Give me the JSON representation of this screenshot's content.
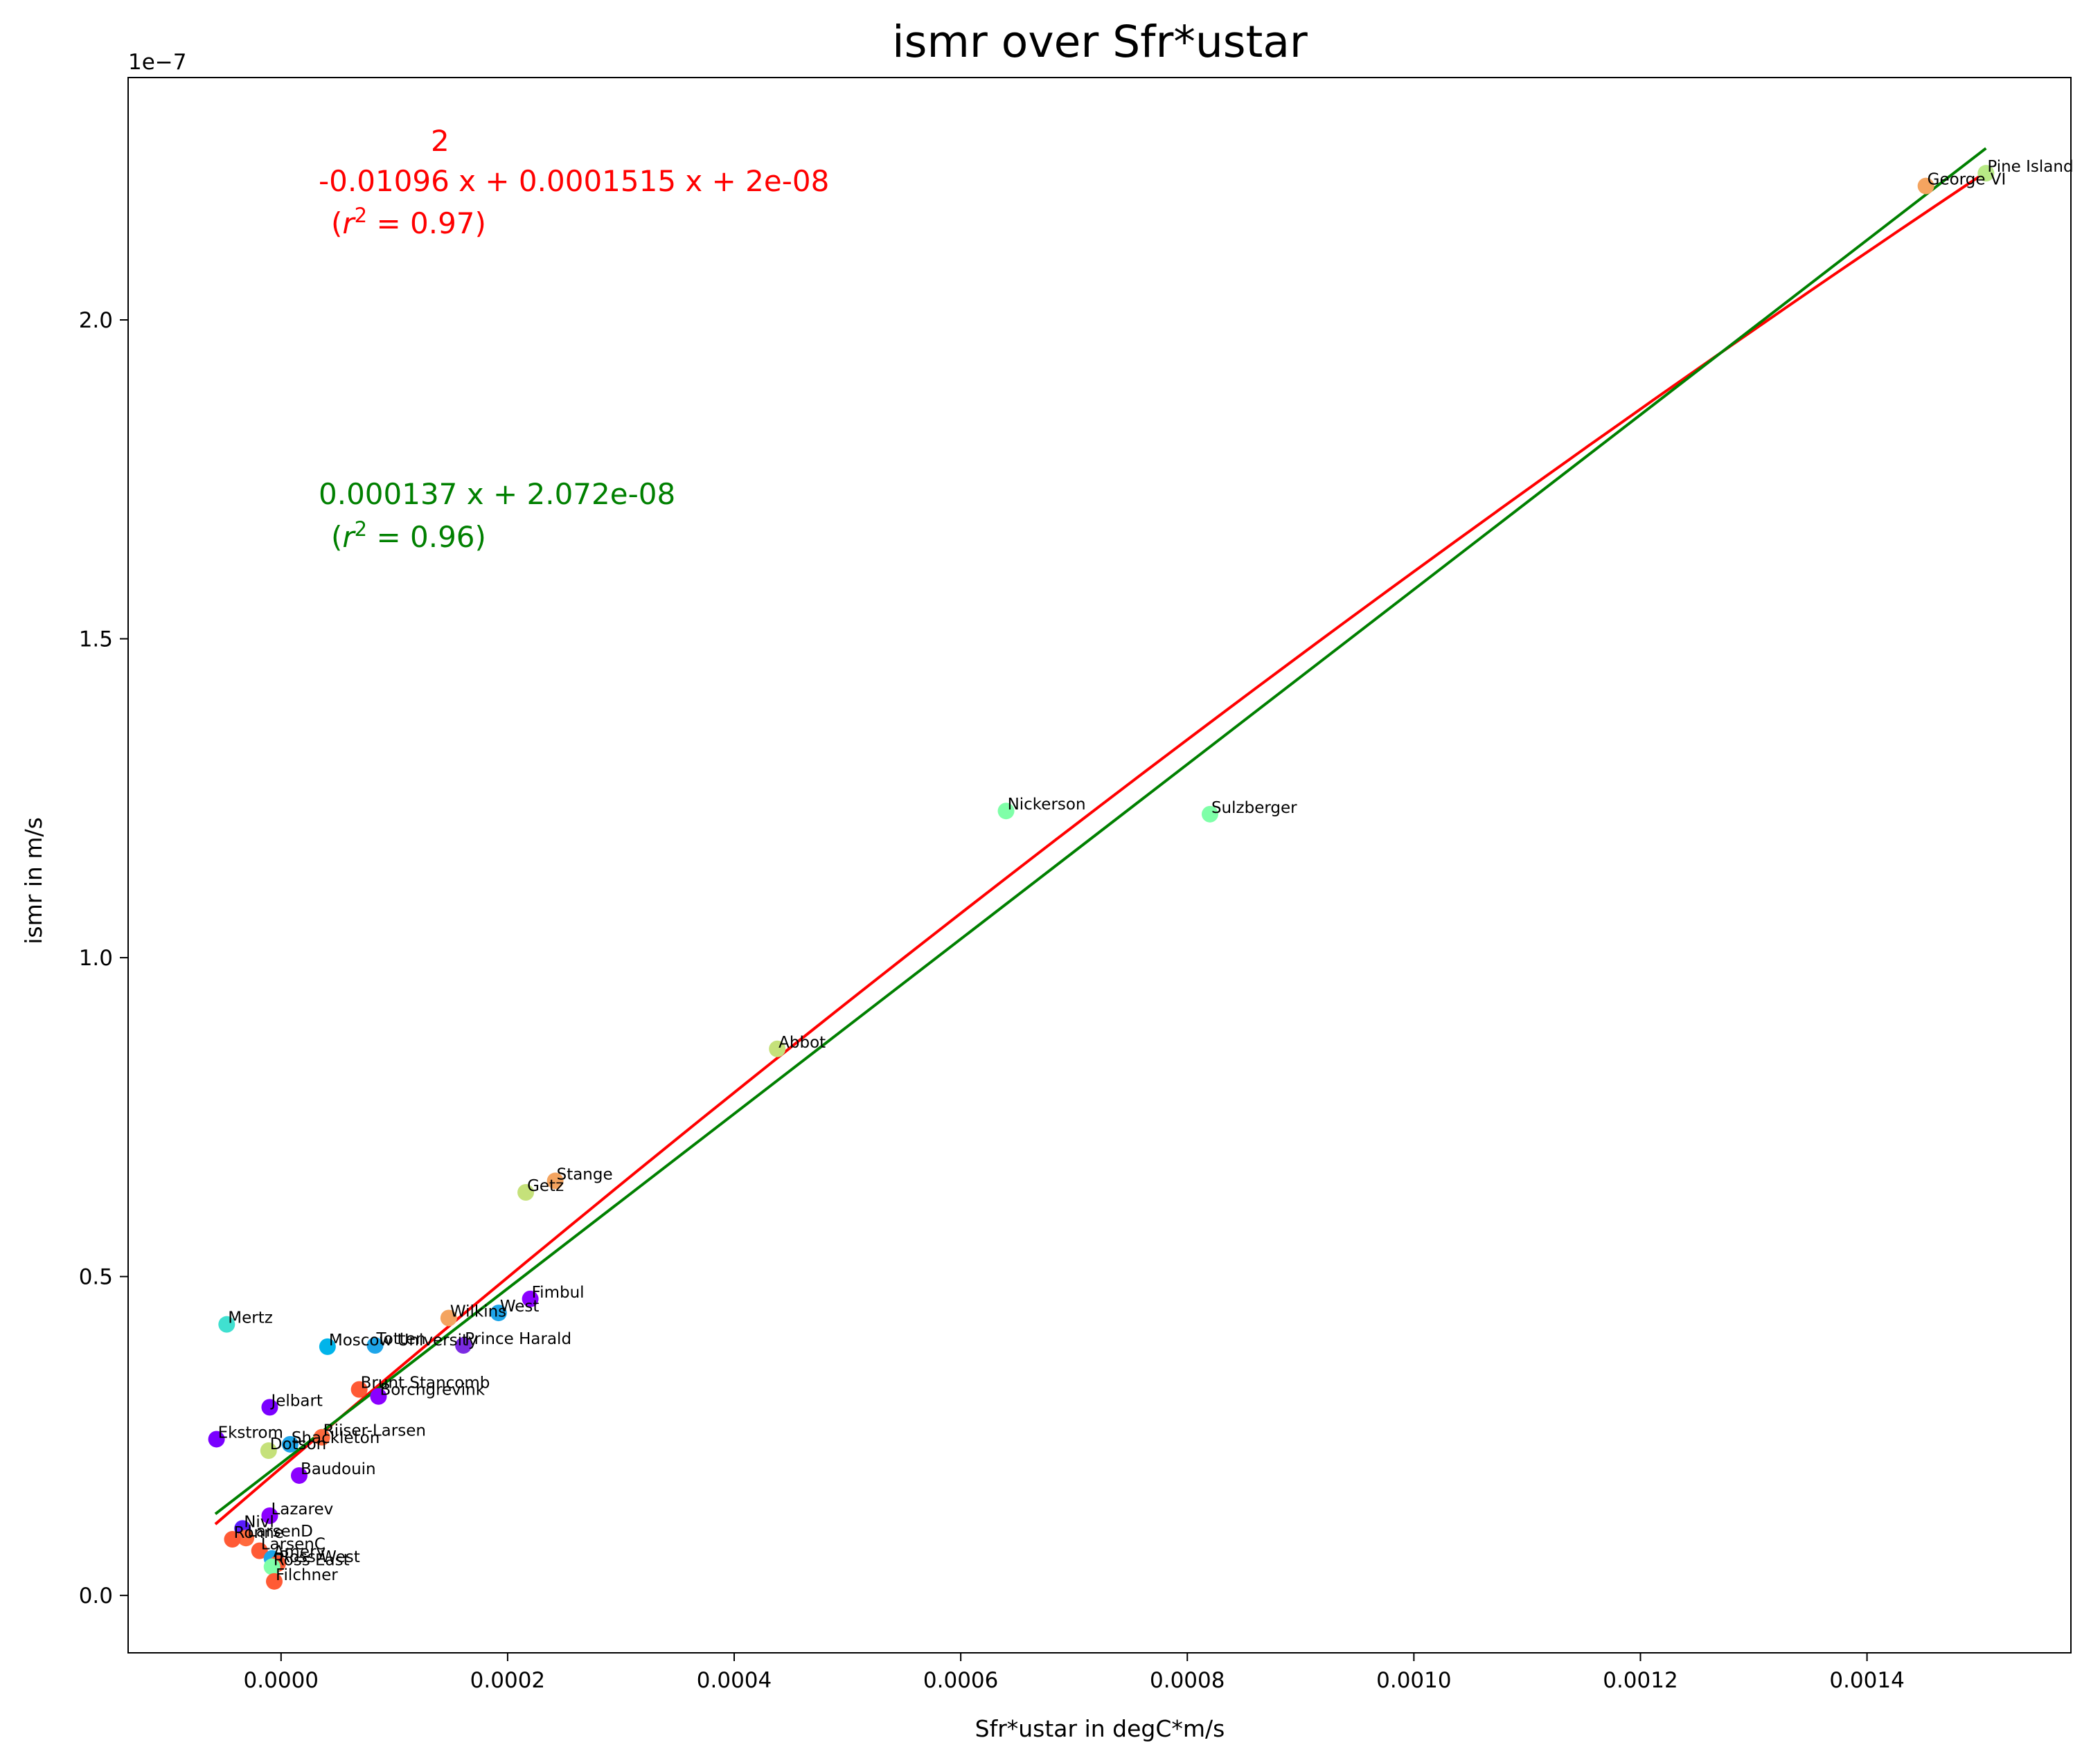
{
  "chart_data": {
    "type": "scatter",
    "title": "ismr over Sfr*ustar",
    "xlabel": "Sfr*ustar in degC*m/s",
    "ylabel": "ismr in m/s",
    "y_offset_text": "1e−7",
    "xlim": [
      -0.000135,
      0.00158
    ],
    "ylim": [
      -0.09,
      2.38
    ],
    "y_units_scale": 1e-07,
    "x_ticks": [
      {
        "value": 0.0,
        "label": "0.0000"
      },
      {
        "value": 0.0002,
        "label": "0.0002"
      },
      {
        "value": 0.0004,
        "label": "0.0004"
      },
      {
        "value": 0.0006,
        "label": "0.0006"
      },
      {
        "value": 0.0008,
        "label": "0.0008"
      },
      {
        "value": 0.001,
        "label": "0.0010"
      },
      {
        "value": 0.0012,
        "label": "0.0012"
      },
      {
        "value": 0.0014,
        "label": "0.0014"
      }
    ],
    "y_ticks": [
      {
        "value": 0.0,
        "label": "0.0"
      },
      {
        "value": 0.5,
        "label": "0.5"
      },
      {
        "value": 1.0,
        "label": "1.0"
      },
      {
        "value": 1.5,
        "label": "1.5"
      },
      {
        "value": 2.0,
        "label": "2.0"
      }
    ],
    "grid": false,
    "points": [
      {
        "name": "Pine Island",
        "x": 0.001505,
        "y": 2.23,
        "color": "#b8e986"
      },
      {
        "name": "George VI",
        "x": 0.001452,
        "y": 2.21,
        "color": "#f4a460"
      },
      {
        "name": "Nickerson",
        "x": 0.00064,
        "y": 1.23,
        "color": "#7fffa8"
      },
      {
        "name": "Sulzberger",
        "x": 0.00082,
        "y": 1.225,
        "color": "#7fffa8"
      },
      {
        "name": "Abbot",
        "x": 0.000438,
        "y": 0.857,
        "color": "#c5e17a"
      },
      {
        "name": "Stange",
        "x": 0.000242,
        "y": 0.65,
        "color": "#f4a460"
      },
      {
        "name": "Getz",
        "x": 0.000216,
        "y": 0.632,
        "color": "#c5e17a"
      },
      {
        "name": "Fimbul",
        "x": 0.00022,
        "y": 0.465,
        "color": "#8b00ff"
      },
      {
        "name": "West",
        "x": 0.000192,
        "y": 0.443,
        "color": "#1ea5e9"
      },
      {
        "name": "Wilkins",
        "x": 0.000148,
        "y": 0.435,
        "color": "#f4a460"
      },
      {
        "name": "Mertz",
        "x": -4.8e-05,
        "y": 0.425,
        "color": "#40e0d0"
      },
      {
        "name": "Totten",
        "x": 8.3e-05,
        "y": 0.392,
        "color": "#1ea5e9"
      },
      {
        "name": "Moscow University",
        "x": 4.1e-05,
        "y": 0.39,
        "color": "#00b4ea"
      },
      {
        "name": "Prince Harald",
        "x": 0.000161,
        "y": 0.392,
        "color": "#7b2be2"
      },
      {
        "name": "Brunt Stancomb",
        "x": 6.9e-05,
        "y": 0.323,
        "color": "#ff5a35"
      },
      {
        "name": "Borchgrevink",
        "x": 8.6e-05,
        "y": 0.312,
        "color": "#8b00ff"
      },
      {
        "name": "Jelbart",
        "x": -1e-05,
        "y": 0.295,
        "color": "#7a00ff"
      },
      {
        "name": "Riiser-Larsen",
        "x": 3.6e-05,
        "y": 0.248,
        "color": "#ff6a3d"
      },
      {
        "name": "Ekstrom",
        "x": -5.7e-05,
        "y": 0.245,
        "color": "#7a00ff"
      },
      {
        "name": "Shackleton",
        "x": 8e-06,
        "y": 0.237,
        "color": "#1ea5e9"
      },
      {
        "name": "Dotson",
        "x": -1.1e-05,
        "y": 0.227,
        "color": "#c5e17a"
      },
      {
        "name": "Baudouin",
        "x": 1.6e-05,
        "y": 0.188,
        "color": "#8b00ff"
      },
      {
        "name": "Lazarev",
        "x": -1e-05,
        "y": 0.125,
        "color": "#8b00ff"
      },
      {
        "name": "Nivl",
        "x": -3.4e-05,
        "y": 0.105,
        "color": "#5a1cff"
      },
      {
        "name": "LarsenD",
        "x": -3.1e-05,
        "y": 0.09,
        "color": "#ff6a3d"
      },
      {
        "name": "Ronne",
        "x": -4.3e-05,
        "y": 0.088,
        "color": "#ff5a35"
      },
      {
        "name": "LarsenC",
        "x": -1.9e-05,
        "y": 0.07,
        "color": "#ff5a35"
      },
      {
        "name": "Amery",
        "x": -8e-06,
        "y": 0.058,
        "color": "#1ea5e9"
      },
      {
        "name": "Ross West",
        "x": -3e-06,
        "y": 0.05,
        "color": "#ff5a35"
      },
      {
        "name": "Ross East",
        "x": -8e-06,
        "y": 0.045,
        "color": "#7fffa8"
      },
      {
        "name": "Filchner",
        "x": -6e-06,
        "y": 0.022,
        "color": "#ff5a35"
      }
    ],
    "fits": [
      {
        "kind": "quadratic",
        "exponent_text": "2",
        "equation_text": "-0.01096 x + 0.0001515 x + 2e-08",
        "r2_prefix": "(",
        "r2_symbol": "r",
        "r2_sup": "2",
        "r2_value_text": " = 0.97)",
        "color": "#ff0000",
        "x_range": [
          -5.8e-05,
          0.001505
        ]
      },
      {
        "kind": "linear",
        "equation_text": "0.000137 x + 2.072e-08",
        "r2_prefix": "(",
        "r2_symbol": "r",
        "r2_sup": "2",
        "r2_value_text": " = 0.96)",
        "color": "#008000",
        "slope": 0.000137,
        "intercept": 2.072e-08,
        "x_range": [
          -5.8e-05,
          0.001505
        ]
      }
    ]
  }
}
